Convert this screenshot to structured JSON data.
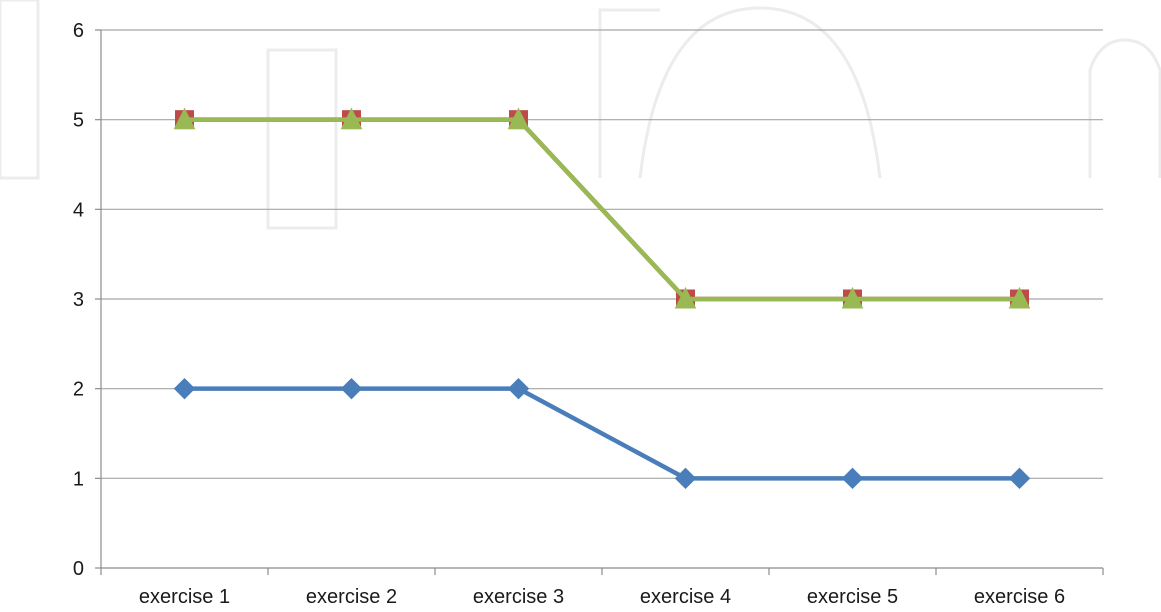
{
  "chart_data": {
    "type": "line",
    "categories": [
      "exercise 1",
      "exercise 2",
      "exercise 3",
      "exercise 4",
      "exercise 5",
      "exercise 6"
    ],
    "ylim": [
      0,
      6
    ],
    "yticks": [
      0,
      1,
      2,
      3,
      4,
      5,
      6
    ],
    "grid": true,
    "legend": "none",
    "series": [
      {
        "values": [
          2,
          2,
          2,
          1,
          1,
          1
        ],
        "color": "#4a7ebb",
        "marker": "diamond"
      },
      {
        "values": [
          5,
          5,
          5,
          3,
          3,
          3
        ],
        "color": "#be4b48",
        "marker": "square"
      },
      {
        "values": [
          5,
          5,
          5,
          3,
          3,
          3
        ],
        "color": "#98b954",
        "marker": "triangle"
      }
    ],
    "background_watermark_color": "#ececec"
  }
}
